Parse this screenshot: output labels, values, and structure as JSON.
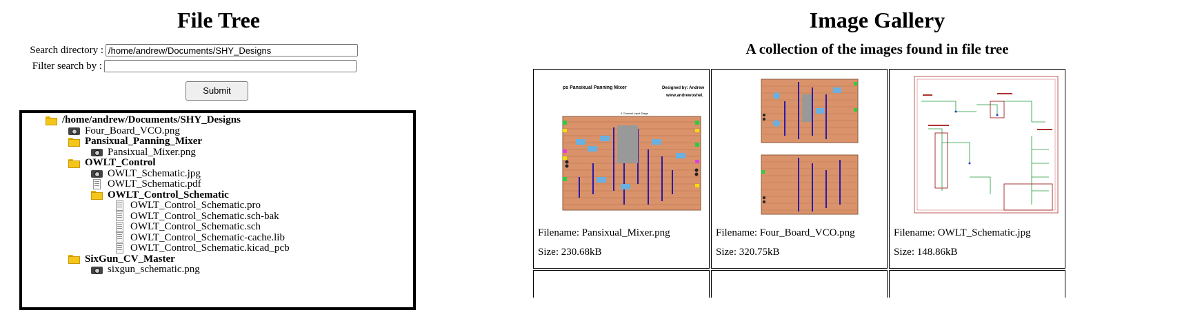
{
  "file_tree": {
    "title": "File Tree",
    "search_label": "Search directory :",
    "search_value": "/home/andrew/Documents/SHY_Designs",
    "filter_label": "Filter search by :",
    "filter_value": "",
    "submit_label": "Submit",
    "items": [
      {
        "name": "/home/andrew/Documents/SHY_Designs",
        "type": "folder",
        "depth": 0
      },
      {
        "name": "Four_Board_VCO.png",
        "type": "image",
        "depth": 1
      },
      {
        "name": "Pansixual_Panning_Mixer",
        "type": "folder",
        "depth": 1
      },
      {
        "name": "Pansixual_Mixer.png",
        "type": "image",
        "depth": 2
      },
      {
        "name": "OWLT_Control",
        "type": "folder",
        "depth": 1
      },
      {
        "name": "OWLT_Schematic.jpg",
        "type": "image",
        "depth": 2
      },
      {
        "name": "OWLT_Schematic.pdf",
        "type": "file",
        "depth": 2
      },
      {
        "name": "OWLT_Control_Schematic",
        "type": "folder",
        "depth": 2
      },
      {
        "name": "OWLT_Control_Schematic.pro",
        "type": "file",
        "depth": 3
      },
      {
        "name": "OWLT_Control_Schematic.sch-bak",
        "type": "file",
        "depth": 3
      },
      {
        "name": "OWLT_Control_Schematic.sch",
        "type": "file",
        "depth": 3
      },
      {
        "name": "OWLT_Control_Schematic-cache.lib",
        "type": "file",
        "depth": 3
      },
      {
        "name": "OWLT_Control_Schematic.kicad_pcb",
        "type": "file",
        "depth": 3
      },
      {
        "name": "SixGun_CV_Master",
        "type": "folder",
        "depth": 1
      },
      {
        "name": "sixgun_schematic.png",
        "type": "image",
        "depth": 2
      }
    ]
  },
  "gallery": {
    "title": "Image Gallery",
    "subtitle": "A collection of the images found in file tree",
    "cards": [
      {
        "filename": "Filename: Pansixual_Mixer.png",
        "size": "Size: 230.68kB",
        "thumb_title": "ps Pansixual Panning Mixer",
        "thumb_designer": "Designed by: Andrew",
        "thumb_url": "www.andrewoshel.",
        "thumb_caption": "4 Channel Input Stage"
      },
      {
        "filename": "Filename: Four_Board_VCO.png",
        "size": "Size: 320.75kB"
      },
      {
        "filename": "Filename: OWLT_Schematic.jpg",
        "size": "Size: 148.86kB"
      }
    ]
  },
  "colors": {
    "folder": "#f5c61a",
    "board": "#d9926a",
    "trace": "#2a1aa8",
    "schematic": "#b03030"
  }
}
